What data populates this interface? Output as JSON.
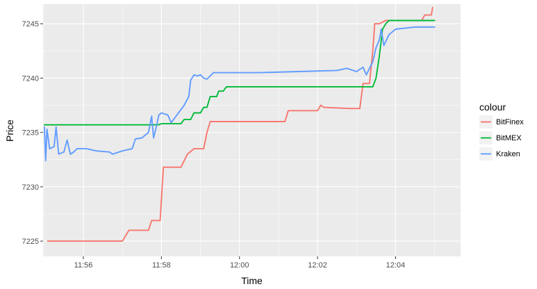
{
  "chart_data": {
    "type": "line",
    "xlabel": "Time",
    "ylabel": "Price",
    "xlim": [
      "11:54:58",
      "12:05:40"
    ],
    "ylim": [
      7223.6,
      7246.8
    ],
    "x_ticks": [
      "11:56",
      "11:58",
      "12:00",
      "12:02",
      "12:04"
    ],
    "y_ticks": [
      7225,
      7230,
      7235,
      7240,
      7245
    ],
    "grid": true,
    "legend": {
      "title": "colour",
      "position": "right"
    },
    "series": [
      {
        "name": "BitFinex",
        "color": "#F8766D",
        "points": [
          [
            "11:55:05",
            7225.0
          ],
          [
            "11:57:00",
            7225.0
          ],
          [
            "11:57:05",
            7225.5
          ],
          [
            "11:57:10",
            7226.0
          ],
          [
            "11:57:40",
            7226.0
          ],
          [
            "11:57:45",
            7226.9
          ],
          [
            "11:57:58",
            7226.9
          ],
          [
            "11:58:03",
            7231.8
          ],
          [
            "11:58:30",
            7231.8
          ],
          [
            "11:58:40",
            7233.0
          ],
          [
            "11:58:50",
            7233.5
          ],
          [
            "11:59:05",
            7233.5
          ],
          [
            "11:59:10",
            7235.0
          ],
          [
            "11:59:15",
            7236.0
          ],
          [
            "12:01:10",
            7236.0
          ],
          [
            "12:01:15",
            7237.0
          ],
          [
            "12:02:00",
            7237.0
          ],
          [
            "12:02:05",
            7237.5
          ],
          [
            "12:02:10",
            7237.3
          ],
          [
            "12:02:50",
            7237.2
          ],
          [
            "12:03:05",
            7237.2
          ],
          [
            "12:03:10",
            7239.5
          ],
          [
            "12:03:20",
            7239.5
          ],
          [
            "12:03:25",
            7242.5
          ],
          [
            "12:03:28",
            7245.0
          ],
          [
            "12:03:35",
            7245.0
          ],
          [
            "12:03:45",
            7245.3
          ],
          [
            "12:04:40",
            7245.3
          ],
          [
            "12:04:45",
            7245.8
          ],
          [
            "12:04:55",
            7245.8
          ],
          [
            "12:04:57",
            7246.5
          ]
        ]
      },
      {
        "name": "BitMEX",
        "color": "#00BA38",
        "points": [
          [
            "11:55:00",
            7235.7
          ],
          [
            "11:57:55",
            7235.7
          ],
          [
            "11:58:00",
            7235.8
          ],
          [
            "11:58:30",
            7235.8
          ],
          [
            "11:58:35",
            7236.2
          ],
          [
            "11:58:45",
            7236.2
          ],
          [
            "11:58:50",
            7236.8
          ],
          [
            "11:59:00",
            7236.8
          ],
          [
            "11:59:05",
            7237.3
          ],
          [
            "11:59:10",
            7237.3
          ],
          [
            "11:59:15",
            7238.3
          ],
          [
            "11:59:25",
            7238.3
          ],
          [
            "11:59:28",
            7238.8
          ],
          [
            "11:59:35",
            7238.8
          ],
          [
            "11:59:40",
            7239.2
          ],
          [
            "12:03:25",
            7239.2
          ],
          [
            "12:03:30",
            7240.0
          ],
          [
            "12:03:35",
            7242.0
          ],
          [
            "12:03:40",
            7244.5
          ],
          [
            "12:03:45",
            7245.0
          ],
          [
            "12:03:50",
            7245.3
          ],
          [
            "12:05:00",
            7245.3
          ]
        ]
      },
      {
        "name": "Kraken",
        "color": "#619CFF",
        "points": [
          [
            "11:55:00",
            7235.5
          ],
          [
            "11:55:02",
            7232.4
          ],
          [
            "11:55:04",
            7235.3
          ],
          [
            "11:55:08",
            7233.5
          ],
          [
            "11:55:15",
            7233.7
          ],
          [
            "11:55:18",
            7235.5
          ],
          [
            "11:55:22",
            7233.0
          ],
          [
            "11:55:30",
            7233.2
          ],
          [
            "11:55:35",
            7234.3
          ],
          [
            "11:55:40",
            7233.0
          ],
          [
            "11:55:45",
            7233.2
          ],
          [
            "11:55:50",
            7233.5
          ],
          [
            "11:56:05",
            7233.5
          ],
          [
            "11:56:20",
            7233.3
          ],
          [
            "11:56:40",
            7233.2
          ],
          [
            "11:56:45",
            7233.0
          ],
          [
            "11:57:00",
            7233.3
          ],
          [
            "11:57:15",
            7233.5
          ],
          [
            "11:57:20",
            7234.4
          ],
          [
            "11:57:30",
            7234.5
          ],
          [
            "11:57:40",
            7235.0
          ],
          [
            "11:57:45",
            7236.5
          ],
          [
            "11:57:48",
            7234.5
          ],
          [
            "11:57:52",
            7235.5
          ],
          [
            "11:57:56",
            7236.6
          ],
          [
            "11:58:00",
            7236.8
          ],
          [
            "11:58:10",
            7236.6
          ],
          [
            "11:58:15",
            7235.9
          ],
          [
            "11:58:20",
            7236.3
          ],
          [
            "11:58:25",
            7236.7
          ],
          [
            "11:58:35",
            7237.5
          ],
          [
            "11:58:42",
            7238.3
          ],
          [
            "11:58:45",
            7239.8
          ],
          [
            "11:58:50",
            7240.3
          ],
          [
            "11:58:55",
            7240.2
          ],
          [
            "11:59:00",
            7240.3
          ],
          [
            "11:59:05",
            7240.0
          ],
          [
            "11:59:10",
            7239.9
          ],
          [
            "11:59:20",
            7240.5
          ],
          [
            "12:00:30",
            7240.5
          ],
          [
            "12:01:30",
            7240.6
          ],
          [
            "12:02:30",
            7240.7
          ],
          [
            "12:02:45",
            7240.9
          ],
          [
            "12:03:00",
            7240.6
          ],
          [
            "12:03:10",
            7241.0
          ],
          [
            "12:03:15",
            7240.3
          ],
          [
            "12:03:25",
            7241.5
          ],
          [
            "12:03:30",
            7242.8
          ],
          [
            "12:03:35",
            7243.5
          ],
          [
            "12:03:38",
            7244.5
          ],
          [
            "12:03:42",
            7243.0
          ],
          [
            "12:03:50",
            7244.0
          ],
          [
            "12:04:00",
            7244.5
          ],
          [
            "12:04:30",
            7244.7
          ],
          [
            "12:05:00",
            7244.7
          ]
        ]
      }
    ]
  }
}
